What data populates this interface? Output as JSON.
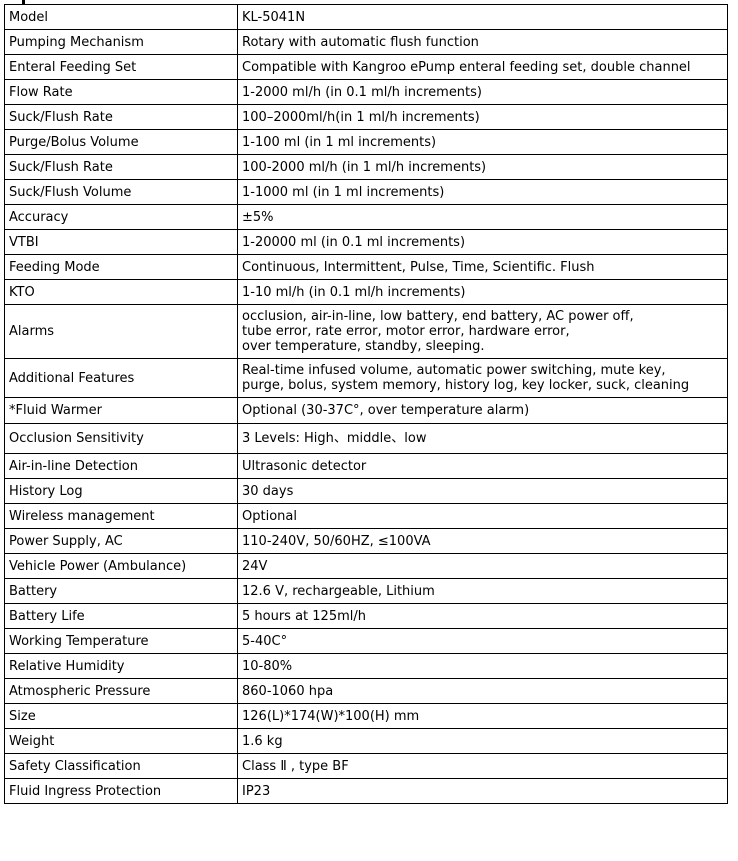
{
  "specs": [
    {
      "label": "Model",
      "value": "KL-5041N"
    },
    {
      "label": "Pumping Mechanism",
      "value": "Rotary with automatic flush function"
    },
    {
      "label": "Enteral Feeding Set",
      "value": "Compatible with Kangroo ePump enteral feeding set, double channel"
    },
    {
      "label": "Flow Rate",
      "value": "1-2000 ml/h (in 0.1 ml/h increments)"
    },
    {
      "label": "Suck/Flush Rate",
      "value": "100–2000ml/h(in 1 ml/h increments)"
    },
    {
      "label": "Purge/Bolus Volume",
      "value": "1-100 ml (in 1 ml increments)"
    },
    {
      "label": "Suck/Flush Rate",
      "value": "100-2000 ml/h (in 1 ml/h increments)"
    },
    {
      "label": "Suck/Flush Volume",
      "value": "1-1000 ml (in 1 ml increments)"
    },
    {
      "label": "Accuracy",
      "value": "±5%"
    },
    {
      "label": "VTBI",
      "value": "1-20000 ml (in 0.1 ml increments)"
    },
    {
      "label": "Feeding Mode",
      "value": "Continuous, Intermittent, Pulse, Time, Scientific. Flush"
    },
    {
      "label": "KTO",
      "value": "1-10 ml/h (in 0.1 ml/h increments)"
    },
    {
      "label": "Alarms",
      "value": "occlusion,  air-in-line, low battery, end battery, AC power off,\ntube error, rate error, motor error, hardware error,\nover temperature, standby, sleeping."
    },
    {
      "label": "Additional Features",
      "value": "Real-time infused volume, automatic power switching, mute key,\npurge, bolus, system memory, history log, key locker, suck, cleaning"
    },
    {
      "label": "*Fluid Warmer",
      "value": "Optional (30-37C°, over temperature alarm)"
    },
    {
      "label": "Occlusion Sensitivity",
      "value": "3 Levels: High、middle、low"
    },
    {
      "label": "Air-in-line Detection",
      "value": "Ultrasonic detector"
    },
    {
      "label": "History Log",
      "value": "30 days"
    },
    {
      "label": "Wireless management",
      "value": "Optional"
    },
    {
      "label": "Power Supply, AC",
      "value": "110-240V, 50/60HZ, ≤100VA"
    },
    {
      "label": "Vehicle Power (Ambulance)",
      "value": "24V"
    },
    {
      "label": "Battery",
      "value": "12.6 V, rechargeable, Lithium"
    },
    {
      "label": "Battery Life",
      "value": "5 hours at 125ml/h"
    },
    {
      "label": "Working Temperature",
      "value": "5-40C°"
    },
    {
      "label": "Relative Humidity",
      "value": "10-80%"
    },
    {
      "label": "Atmospheric Pressure",
      "value": "860-1060 hpa"
    },
    {
      "label": "Size",
      "value": "126(L)*174(W)*100(H) mm"
    },
    {
      "label": "Weight",
      "value": "1.6 kg"
    },
    {
      "label": "Safety Classification",
      "value": "Class  Ⅱ , type BF"
    },
    {
      "label": "Fluid Ingress Protection",
      "value": "IP23"
    }
  ]
}
